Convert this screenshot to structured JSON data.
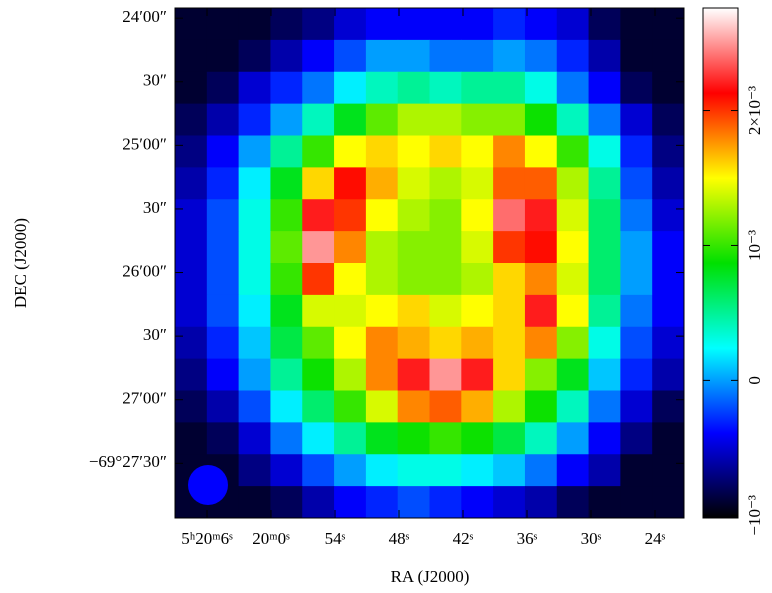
{
  "chart_data": {
    "type": "heatmap",
    "xlabel": "RA (J2000)",
    "ylabel": "DEC (J2000)",
    "xlim": [
      69,
      21.28
    ],
    "xticks": [
      {
        "value": 66,
        "label": "5ʰ20ᵐ6ˢ"
      },
      {
        "value": 60,
        "label": "20ᵐ0ˢ"
      },
      {
        "value": 54,
        "label": "54ˢ"
      },
      {
        "value": 48,
        "label": "48ˢ"
      },
      {
        "value": 42,
        "label": "42ˢ"
      },
      {
        "value": 36,
        "label": "36ˢ"
      },
      {
        "value": 30,
        "label": "30ˢ"
      },
      {
        "value": 24,
        "label": "24ˢ"
      }
    ],
    "ylim": [
      27.93,
      23.92
    ],
    "yticks": [
      {
        "value": 24,
        "label": "24′00″"
      },
      {
        "value": 24.5,
        "label": "30″"
      },
      {
        "value": 25,
        "label": "25′00″"
      },
      {
        "value": 25.5,
        "label": "30″"
      },
      {
        "value": 26,
        "label": "26′00″"
      },
      {
        "value": 26.5,
        "label": "30″"
      },
      {
        "value": 27,
        "label": "27′00″"
      },
      {
        "value": 27.5,
        "label": "−69°27′30″"
      }
    ],
    "clim": [
      -0.00102,
      0.00276
    ],
    "cticks": [
      {
        "value": -0.001,
        "label": "−10⁻³"
      },
      {
        "value": 0,
        "label": "0"
      },
      {
        "value": 0.001,
        "label": "10⁻³"
      },
      {
        "value": 0.002,
        "label": "2×10⁻³"
      }
    ],
    "colormap": [
      "#000000",
      "#0000ff",
      "#00ffff",
      "#00e000",
      "#ffff00",
      "#ff0000",
      "#ffffff"
    ],
    "beam_color": "#0000ff",
    "z": [
      [
        -0.0009,
        -0.0009,
        -0.0009,
        -0.0008,
        -0.0007,
        -0.0005,
        -0.0004,
        -0.0004,
        -0.0004,
        -0.0004,
        -0.0003,
        -0.0004,
        -0.0005,
        -0.0008,
        -0.0009,
        -0.0009
      ],
      [
        -0.0009,
        -0.0009,
        -0.0008,
        -0.0006,
        -0.0004,
        -0.0002,
        0,
        0,
        -0.0001,
        -0.0001,
        0,
        -0.0001,
        -0.0003,
        -0.0006,
        -0.0009,
        -0.0009
      ],
      [
        -0.0009,
        -0.0008,
        -0.0005,
        -0.0003,
        -0.0001,
        0.0002,
        0.0004,
        0.0005,
        0.0004,
        0.0005,
        0.0005,
        0.0003,
        -0.0001,
        -0.0004,
        -0.0008,
        -0.0009
      ],
      [
        -0.0008,
        -0.0006,
        -0.0003,
        0,
        0.0004,
        0.0008,
        0.0011,
        0.0013,
        0.0013,
        0.0012,
        0.0012,
        0.0009,
        0.0004,
        -0.0001,
        -0.0005,
        -0.0008
      ],
      [
        -0.0007,
        -0.0004,
        0,
        0.0005,
        0.001,
        0.0015,
        0.0016,
        0.0015,
        0.0016,
        0.0015,
        0.0018,
        0.0015,
        0.001,
        0.0003,
        -0.0003,
        -0.0007
      ],
      [
        -0.0006,
        -0.0003,
        0.0002,
        0.0008,
        0.0016,
        0.0021,
        0.0017,
        0.0014,
        0.0013,
        0.0014,
        0.0019,
        0.0019,
        0.0013,
        0.0005,
        -0.0002,
        -0.0006
      ],
      [
        -0.0005,
        -0.0002,
        0.0003,
        0.001,
        0.0022,
        0.002,
        0.0015,
        0.0013,
        0.0012,
        0.0015,
        0.0024,
        0.0022,
        0.0014,
        0.0006,
        -0.0001,
        -0.0005
      ],
      [
        -0.0005,
        -0.0002,
        0.0003,
        0.0011,
        0.0025,
        0.0018,
        0.0013,
        0.0012,
        0.0012,
        0.0014,
        0.002,
        0.0021,
        0.0015,
        0.0006,
        0,
        -0.0004
      ],
      [
        -0.0005,
        -0.0002,
        0.0003,
        0.001,
        0.002,
        0.0015,
        0.0013,
        0.0012,
        0.0012,
        0.0013,
        0.0016,
        0.0018,
        0.0014,
        0.0006,
        0,
        -0.0004
      ],
      [
        -0.0005,
        -0.0002,
        0.0002,
        0.0008,
        0.0014,
        0.0014,
        0.0015,
        0.0016,
        0.0014,
        0.0015,
        0.0016,
        0.0022,
        0.0015,
        0.0005,
        -0.0001,
        -0.0004
      ],
      [
        -0.0006,
        -0.0003,
        0.0001,
        0.0007,
        0.0011,
        0.0015,
        0.0018,
        0.0017,
        0.0016,
        0.0017,
        0.0016,
        0.0018,
        0.0012,
        0.0003,
        -0.0002,
        -0.0005
      ],
      [
        -0.0007,
        -0.0004,
        0,
        0.0005,
        0.0009,
        0.0013,
        0.0018,
        0.0022,
        0.0025,
        0.0022,
        0.0016,
        0.0012,
        0.0008,
        0.0001,
        -0.0003,
        -0.0006
      ],
      [
        -0.0008,
        -0.0006,
        -0.0002,
        0.0002,
        0.0006,
        0.001,
        0.0014,
        0.0018,
        0.0019,
        0.0017,
        0.0013,
        0.0009,
        0.0004,
        -0.0001,
        -0.0005,
        -0.0008
      ],
      [
        -0.0009,
        -0.0008,
        -0.0005,
        -0.0001,
        0.0002,
        0.0005,
        0.0008,
        0.0009,
        0.001,
        0.0009,
        0.0007,
        0.0004,
        0,
        -0.0004,
        -0.0007,
        -0.0009
      ],
      [
        -0.0009,
        -0.0009,
        -0.0007,
        -0.0005,
        -0.0002,
        0,
        0.0002,
        0.0003,
        0.0003,
        0.0002,
        0.0001,
        -0.0001,
        -0.0004,
        -0.0006,
        -0.0009,
        -0.0009
      ],
      [
        -0.0009,
        -0.0009,
        -0.0009,
        -0.0008,
        -0.0006,
        -0.0004,
        -0.0003,
        -0.0002,
        -0.0003,
        -0.0004,
        -0.0005,
        -0.0006,
        -0.0008,
        -0.0009,
        -0.0009,
        -0.0009
      ]
    ]
  }
}
